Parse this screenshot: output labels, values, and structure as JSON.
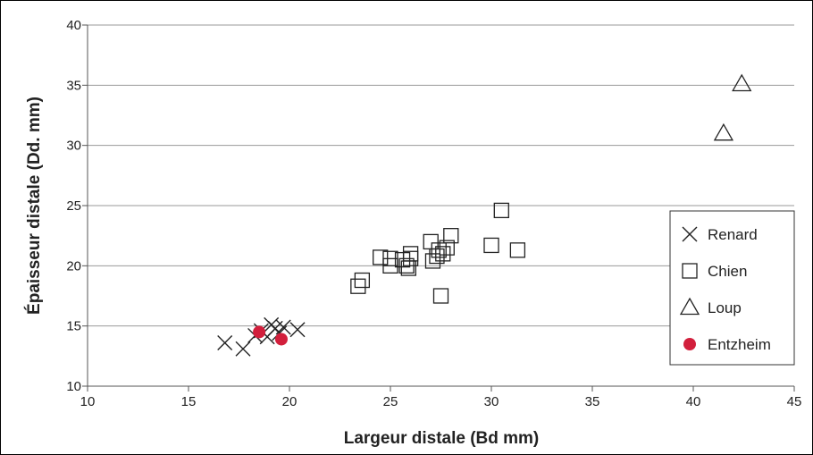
{
  "chart_data": {
    "type": "scatter",
    "xlabel": "Largeur distale (Bd mm)",
    "ylabel": "Épaisseur distale (Dd. mm)",
    "xlim": [
      10,
      45
    ],
    "ylim": [
      10,
      40
    ],
    "xticks": [
      10,
      15,
      20,
      25,
      30,
      35,
      40,
      45
    ],
    "yticks": [
      10,
      15,
      20,
      25,
      30,
      35,
      40
    ],
    "grid": "horizontal",
    "legend_position": "right",
    "series": [
      {
        "name": "Renard",
        "marker": "x",
        "color": "#222222",
        "points": [
          [
            16.8,
            13.6
          ],
          [
            17.7,
            13.1
          ],
          [
            18.3,
            14.2
          ],
          [
            18.6,
            14.6
          ],
          [
            18.9,
            14.1
          ],
          [
            19.1,
            15.1
          ],
          [
            19.3,
            14.8
          ],
          [
            19.5,
            14.4
          ],
          [
            19.7,
            14.9
          ],
          [
            20.4,
            14.7
          ]
        ]
      },
      {
        "name": "Chien",
        "marker": "square",
        "color": "#222222",
        "points": [
          [
            23.4,
            18.3
          ],
          [
            23.6,
            18.8
          ],
          [
            24.5,
            20.7
          ],
          [
            25.0,
            20.6
          ],
          [
            25.0,
            20.0
          ],
          [
            25.6,
            20.5
          ],
          [
            25.8,
            20.0
          ],
          [
            25.9,
            19.8
          ],
          [
            26.0,
            21.0
          ],
          [
            26.0,
            20.6
          ],
          [
            27.0,
            22.0
          ],
          [
            27.1,
            20.4
          ],
          [
            27.3,
            20.8
          ],
          [
            27.4,
            21.3
          ],
          [
            27.5,
            17.5
          ],
          [
            27.6,
            21.0
          ],
          [
            27.8,
            21.5
          ],
          [
            28.0,
            22.5
          ],
          [
            30.0,
            21.7
          ],
          [
            30.5,
            24.6
          ],
          [
            31.3,
            21.3
          ]
        ]
      },
      {
        "name": "Loup",
        "marker": "triangle",
        "color": "#222222",
        "points": [
          [
            41.5,
            31.0
          ],
          [
            42.4,
            35.1
          ]
        ]
      },
      {
        "name": "Entzheim",
        "marker": "circle",
        "color": "#d21f3c",
        "points": [
          [
            18.5,
            14.5
          ],
          [
            19.6,
            13.9
          ]
        ]
      }
    ]
  }
}
